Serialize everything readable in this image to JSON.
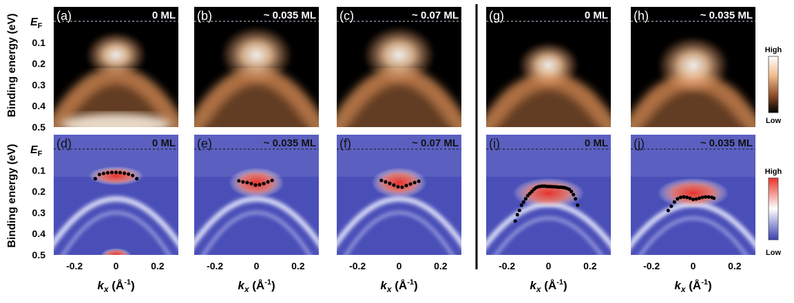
{
  "figure": {
    "ylabel": "Binding energy (eV)",
    "ef_main": "E",
    "ef_sub": "F",
    "xlabel_main": "k",
    "xlabel_sub": "x",
    "xlabel_units": "(Å",
    "xlabel_exp": "-1",
    "xlabel_close": ")",
    "y_ticks": [
      "0.1",
      "0.2",
      "0.3",
      "0.4",
      "0.5"
    ],
    "x_ticks": [
      "-0.2",
      "0",
      "0.2"
    ],
    "colorbar_top": {
      "high": "High",
      "low": "Low",
      "colors": [
        "#ffffff",
        "#f0b98a",
        "#b0683a",
        "#000000"
      ]
    },
    "colorbar_bottom": {
      "high": "High",
      "low": "Low",
      "colors": [
        "#e8322a",
        "#ffffff",
        "#3a3fb0"
      ]
    }
  },
  "panels": [
    {
      "id": "a",
      "label": "(a)",
      "coverage": "0 ML",
      "row": 0
    },
    {
      "id": "b",
      "label": "(b)",
      "coverage": "~ 0.035 ML",
      "row": 0
    },
    {
      "id": "c",
      "label": "(c)",
      "coverage": "~ 0.07 ML",
      "row": 0
    },
    {
      "id": "g",
      "label": "(g)",
      "coverage": "0 ML",
      "row": 0
    },
    {
      "id": "h",
      "label": "(h)",
      "coverage": "~ 0.035 ML",
      "row": 0
    },
    {
      "id": "d",
      "label": "(d)",
      "coverage": "0 ML",
      "row": 1
    },
    {
      "id": "e",
      "label": "(e)",
      "coverage": "~ 0.035 ML",
      "row": 1
    },
    {
      "id": "f",
      "label": "(f)",
      "coverage": "~ 0.07 ML",
      "row": 1
    },
    {
      "id": "i",
      "label": "(i)",
      "coverage": "0 ML",
      "row": 1
    },
    {
      "id": "j",
      "label": "(j)",
      "coverage": "~ 0.035 ML",
      "row": 1
    }
  ],
  "chart_data": [
    {
      "type": "scatter",
      "panel": "d",
      "x": [
        -0.1,
        -0.08,
        -0.06,
        -0.04,
        -0.02,
        0.0,
        0.02,
        0.04,
        0.06,
        0.08,
        0.1
      ],
      "y": [
        0.14,
        0.12,
        0.115,
        0.112,
        0.11,
        0.11,
        0.111,
        0.114,
        0.118,
        0.125,
        0.14
      ]
    },
    {
      "type": "scatter",
      "panel": "e",
      "x": [
        -0.085,
        -0.065,
        -0.045,
        -0.025,
        -0.005,
        0.015,
        0.035,
        0.055,
        0.075
      ],
      "y": [
        0.15,
        0.155,
        0.158,
        0.163,
        0.17,
        0.168,
        0.163,
        0.155,
        0.148
      ]
    },
    {
      "type": "scatter",
      "panel": "f",
      "x": [
        -0.085,
        -0.065,
        -0.045,
        -0.025,
        -0.005,
        0.015,
        0.035,
        0.055,
        0.075,
        0.095
      ],
      "y": [
        0.148,
        0.155,
        0.162,
        0.17,
        0.178,
        0.18,
        0.172,
        0.165,
        0.158,
        0.152
      ]
    },
    {
      "type": "scatter",
      "panel": "i",
      "x": [
        -0.16,
        -0.15,
        -0.14,
        -0.13,
        -0.12,
        -0.11,
        -0.1,
        -0.09,
        -0.08,
        -0.07,
        -0.06,
        -0.05,
        -0.04,
        -0.03,
        -0.02,
        -0.01,
        0.0,
        0.01,
        0.02,
        0.03,
        0.04,
        0.05,
        0.06,
        0.07,
        0.08,
        0.09,
        0.1,
        0.11,
        0.12,
        0.13,
        0.14
      ],
      "y": [
        0.34,
        0.31,
        0.29,
        0.265,
        0.25,
        0.235,
        0.22,
        0.21,
        0.2,
        0.19,
        0.182,
        0.178,
        0.176,
        0.175,
        0.175,
        0.176,
        0.177,
        0.177,
        0.178,
        0.178,
        0.179,
        0.18,
        0.18,
        0.181,
        0.183,
        0.186,
        0.19,
        0.2,
        0.215,
        0.235,
        0.265
      ]
    },
    {
      "type": "scatter",
      "panel": "j",
      "x": [
        -0.12,
        -0.105,
        -0.09,
        -0.075,
        -0.06,
        -0.045,
        -0.03,
        -0.015,
        0.0,
        0.015,
        0.03,
        0.045,
        0.06,
        0.075,
        0.09,
        0.1
      ],
      "y": [
        0.29,
        0.27,
        0.25,
        0.235,
        0.228,
        0.226,
        0.228,
        0.232,
        0.238,
        0.236,
        0.232,
        0.228,
        0.226,
        0.226,
        0.228,
        0.232
      ]
    }
  ]
}
